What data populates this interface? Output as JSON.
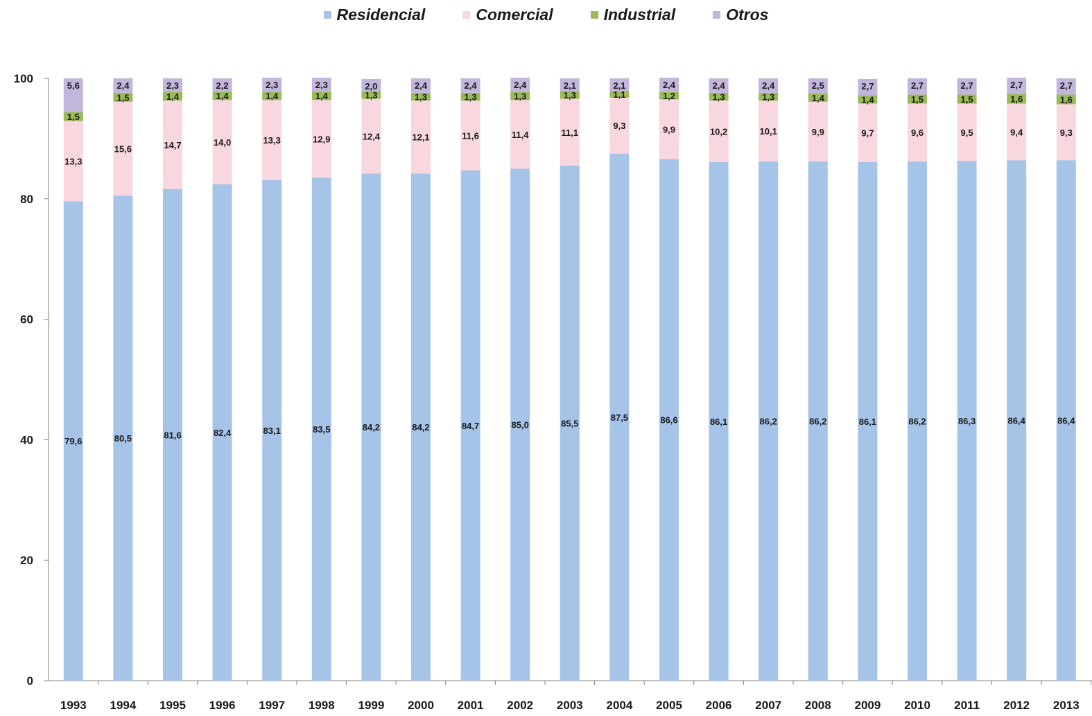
{
  "chart_data": {
    "type": "bar",
    "stacked": true,
    "title": "",
    "xlabel": "",
    "ylabel": "",
    "ylim": [
      0,
      100
    ],
    "yticks": [
      0,
      20,
      40,
      60,
      80,
      100
    ],
    "grid": false,
    "legend_position": "top-center",
    "categories": [
      "1993",
      "1994",
      "1995",
      "1996",
      "1997",
      "1998",
      "1999",
      "2000",
      "2001",
      "2002",
      "2003",
      "2004",
      "2005",
      "2006",
      "2007",
      "2008",
      "2009",
      "2010",
      "2011",
      "2012",
      "2013"
    ],
    "series": [
      {
        "name": "Residencial",
        "color": "#A6C3E8",
        "values": [
          79.6,
          80.5,
          81.6,
          82.4,
          83.1,
          83.5,
          84.2,
          84.2,
          84.7,
          85.0,
          85.5,
          87.5,
          86.6,
          86.1,
          86.2,
          86.2,
          86.1,
          86.2,
          86.3,
          86.4,
          86.4
        ],
        "labels": [
          "79,6",
          "80,5",
          "81,6",
          "82,4",
          "83,1",
          "83,5",
          "84,2",
          "84,2",
          "84,7",
          "85,0",
          "85,5",
          "87,5",
          "86,6",
          "86,1",
          "86,2",
          "86,2",
          "86,1",
          "86,2",
          "86,3",
          "86,4",
          "86,4"
        ]
      },
      {
        "name": "Comercial",
        "color": "#F8D7DF",
        "values": [
          13.3,
          15.6,
          14.7,
          14.0,
          13.3,
          12.9,
          12.4,
          12.1,
          11.6,
          11.4,
          11.1,
          9.3,
          9.9,
          10.2,
          10.1,
          9.9,
          9.7,
          9.6,
          9.5,
          9.4,
          9.3
        ],
        "labels": [
          "13,3",
          "15,6",
          "14,7",
          "14,0",
          "13,3",
          "12,9",
          "12,4",
          "12,1",
          "11,6",
          "11,4",
          "11,1",
          "9,3",
          "9,9",
          "10,2",
          "10,1",
          "9,9",
          "9,7",
          "9,6",
          "9,5",
          "9,4",
          "9,3"
        ]
      },
      {
        "name": "Industrial",
        "color": "#9BBB59",
        "values": [
          1.5,
          1.5,
          1.4,
          1.4,
          1.4,
          1.4,
          1.3,
          1.3,
          1.3,
          1.3,
          1.3,
          1.1,
          1.2,
          1.3,
          1.3,
          1.4,
          1.4,
          1.5,
          1.5,
          1.6,
          1.6
        ],
        "labels": [
          "1,5",
          "1,5",
          "1,4",
          "1,4",
          "1,4",
          "1,4",
          "1,3",
          "1,3",
          "1,3",
          "1,3",
          "1,3",
          "1,1",
          "1,2",
          "1,3",
          "1,3",
          "1,4",
          "1,4",
          "1,5",
          "1,5",
          "1,6",
          "1,6"
        ]
      },
      {
        "name": "Otros",
        "color": "#C3B6DD",
        "values": [
          5.6,
          2.4,
          2.3,
          2.2,
          2.3,
          2.3,
          2.0,
          2.4,
          2.4,
          2.4,
          2.1,
          2.1,
          2.4,
          2.4,
          2.4,
          2.5,
          2.7,
          2.7,
          2.7,
          2.7,
          2.7
        ],
        "labels": [
          "5,6",
          "2,4",
          "2,3",
          "2,2",
          "2,3",
          "2,3",
          "2,0",
          "2,4",
          "2,4",
          "2,4",
          "2,1",
          "2,1",
          "2,4",
          "2,4",
          "2,4",
          "2,5",
          "2,7",
          "2,7",
          "2,7",
          "2,7",
          "2,7"
        ]
      }
    ]
  }
}
